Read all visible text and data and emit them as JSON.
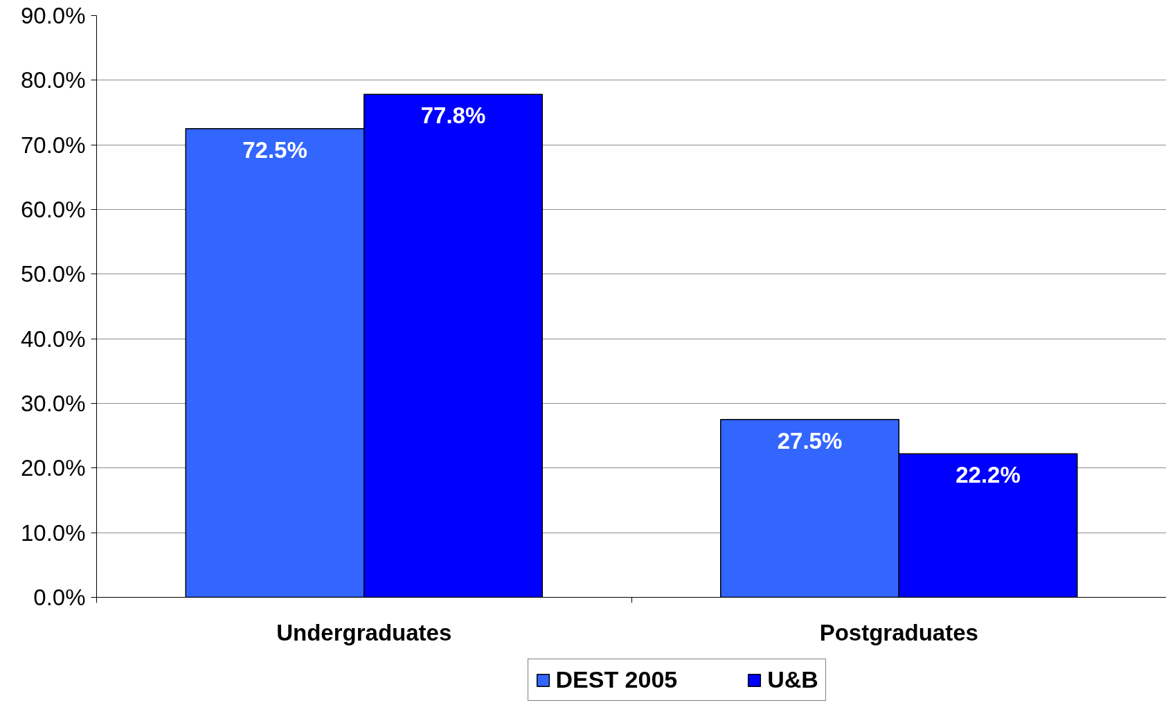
{
  "chart_data": {
    "type": "bar",
    "categories": [
      "Undergraduates",
      "Postgraduates"
    ],
    "series": [
      {
        "name": "DEST 2005",
        "color": "#3366ff",
        "values": [
          72.5,
          27.5
        ],
        "value_labels": [
          "72.5%",
          "27.5%"
        ]
      },
      {
        "name": "U&B",
        "color": "#0000ff",
        "values": [
          77.8,
          22.2
        ],
        "value_labels": [
          "77.8%",
          "22.2%"
        ]
      }
    ],
    "ylim": [
      0,
      90
    ],
    "yticks": [
      {
        "value": 0,
        "label": "0.0%"
      },
      {
        "value": 10,
        "label": "10.0%"
      },
      {
        "value": 20,
        "label": "20.0%"
      },
      {
        "value": 30,
        "label": "30.0%"
      },
      {
        "value": 40,
        "label": "40.0%"
      },
      {
        "value": 50,
        "label": "50.0%"
      },
      {
        "value": 60,
        "label": "60.0%"
      },
      {
        "value": 70,
        "label": "70.0%"
      },
      {
        "value": 80,
        "label": "80.0%"
      },
      {
        "value": 90,
        "label": "90.0%"
      }
    ],
    "grid": "y",
    "legend": "bottom"
  }
}
